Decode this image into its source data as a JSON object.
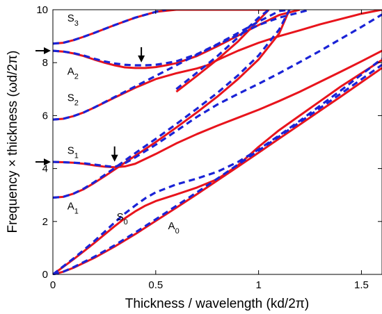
{
  "chart_data": {
    "type": "line",
    "xlabel": "Thickness / wavelength (kd/2π)",
    "ylabel": "Frequency × thickness (ωd/2π)",
    "xlim": [
      0,
      1.6
    ],
    "ylim": [
      0,
      10
    ],
    "xticks": [
      0,
      0.5,
      1,
      1.5
    ],
    "xtick_labels": [
      "0",
      "0.5",
      "1",
      "1.5"
    ],
    "yticks": [
      0,
      2,
      4,
      6,
      8,
      10
    ],
    "ytick_labels": [
      "0",
      "2",
      "4",
      "6",
      "8",
      "10"
    ],
    "grid": false,
    "colors": {
      "solid": "#e8141c",
      "dashed": "#1a23d6"
    },
    "curve_labels": [
      {
        "base": "S",
        "sub": "3",
        "x": 0.07,
        "y": 9.55
      },
      {
        "base": "A",
        "sub": "2",
        "x": 0.07,
        "y": 7.55
      },
      {
        "base": "S",
        "sub": "2",
        "x": 0.07,
        "y": 6.55
      },
      {
        "base": "S",
        "sub": "1",
        "x": 0.07,
        "y": 4.55
      },
      {
        "base": "A",
        "sub": "1",
        "x": 0.07,
        "y": 2.45
      },
      {
        "base": "S",
        "sub": "0",
        "x": 0.31,
        "y": 2.05
      },
      {
        "base": "A",
        "sub": "0",
        "x": 0.56,
        "y": 1.7
      }
    ],
    "arrows": [
      {
        "direction": "right",
        "x": 0.0,
        "y": 8.45
      },
      {
        "direction": "down",
        "x": 0.43,
        "y": 7.85
      },
      {
        "direction": "right",
        "x": 0.0,
        "y": 4.25
      },
      {
        "direction": "down",
        "x": 0.3,
        "y": 4.1
      }
    ],
    "series": [
      {
        "style": "solid",
        "x": [
          0,
          0.05,
          0.1,
          0.2,
          0.3,
          0.4,
          0.5,
          0.6,
          0.7,
          0.8,
          0.9,
          1.0,
          1.1,
          1.2,
          1.3,
          1.4,
          1.5,
          1.6
        ],
        "y": [
          0,
          0.1,
          0.25,
          0.62,
          1.05,
          1.52,
          2.02,
          2.52,
          3.03,
          3.55,
          4.07,
          4.6,
          5.13,
          5.66,
          6.19,
          6.72,
          7.26,
          7.8
        ]
      },
      {
        "style": "dashed",
        "x": [
          0,
          0.05,
          0.1,
          0.2,
          0.3,
          0.4,
          0.5,
          0.6,
          0.7,
          0.8,
          0.9,
          1.0,
          1.1,
          1.2,
          1.3,
          1.4,
          1.5,
          1.6
        ],
        "y": [
          0,
          0.1,
          0.27,
          0.66,
          1.1,
          1.58,
          2.08,
          2.59,
          3.1,
          3.62,
          4.15,
          4.68,
          5.21,
          5.75,
          6.29,
          6.83,
          7.37,
          7.92
        ]
      },
      {
        "style": "solid",
        "x": [
          0,
          0.05,
          0.1,
          0.15,
          0.2,
          0.25,
          0.3,
          0.35,
          0.4,
          0.45,
          0.5,
          0.6,
          0.7,
          0.8,
          0.9,
          1.0,
          1.1,
          1.2,
          1.3,
          1.4,
          1.5,
          1.6
        ],
        "y": [
          0,
          0.28,
          0.57,
          0.87,
          1.18,
          1.5,
          1.82,
          2.12,
          2.38,
          2.6,
          2.77,
          3.02,
          3.28,
          3.6,
          4.12,
          4.82,
          5.45,
          6.0,
          6.55,
          7.1,
          7.6,
          8.1
        ]
      },
      {
        "style": "dashed",
        "x": [
          0,
          0.05,
          0.1,
          0.15,
          0.2,
          0.25,
          0.3,
          0.35,
          0.4,
          0.45,
          0.5,
          0.6,
          0.7,
          0.8,
          0.9,
          1.0,
          1.1,
          1.2,
          1.3,
          1.4,
          1.5,
          1.6
        ],
        "y": [
          0,
          0.3,
          0.6,
          0.92,
          1.25,
          1.6,
          1.96,
          2.3,
          2.6,
          2.88,
          3.1,
          3.4,
          3.62,
          3.88,
          4.25,
          4.72,
          5.25,
          5.8,
          6.38,
          6.95,
          7.55,
          8.15
        ]
      },
      {
        "style": "solid",
        "x": [
          0,
          0.05,
          0.1,
          0.15,
          0.2,
          0.25,
          0.3,
          0.35,
          0.4,
          0.5,
          0.6,
          0.7,
          0.8,
          0.9,
          1.0,
          1.1,
          1.15
        ],
        "y": [
          2.9,
          2.93,
          3.05,
          3.22,
          3.45,
          3.7,
          3.96,
          4.22,
          4.48,
          5.0,
          5.55,
          6.12,
          6.72,
          7.38,
          8.12,
          9.1,
          10.0
        ]
      },
      {
        "style": "dashed",
        "x": [
          0,
          0.05,
          0.1,
          0.15,
          0.2,
          0.25,
          0.3,
          0.35,
          0.4,
          0.5,
          0.6,
          0.7,
          0.8,
          0.9,
          1.0,
          1.1,
          1.15
        ],
        "y": [
          2.9,
          2.93,
          3.05,
          3.24,
          3.48,
          3.75,
          4.02,
          4.3,
          4.58,
          5.12,
          5.68,
          6.26,
          6.86,
          7.52,
          8.27,
          9.25,
          10.0
        ]
      },
      {
        "style": "solid",
        "x": [
          0,
          0.05,
          0.1,
          0.15,
          0.2,
          0.25,
          0.3,
          0.35,
          0.4,
          0.5,
          0.6,
          0.7,
          0.8,
          0.9,
          1.0,
          1.1,
          1.2,
          1.3,
          1.4,
          1.5,
          1.6
        ],
        "y": [
          4.25,
          4.24,
          4.22,
          4.18,
          4.12,
          4.07,
          4.05,
          4.08,
          4.18,
          4.55,
          4.95,
          5.3,
          5.62,
          5.92,
          6.22,
          6.55,
          6.9,
          7.28,
          7.66,
          8.05,
          8.45
        ]
      },
      {
        "style": "dashed",
        "x": [
          0,
          0.05,
          0.1,
          0.15,
          0.2,
          0.25,
          0.3,
          0.35,
          0.4,
          0.5,
          0.6,
          0.7,
          0.8,
          0.9,
          1.0,
          1.1,
          1.2,
          1.3,
          1.4,
          1.5,
          1.6
        ],
        "y": [
          4.25,
          4.24,
          4.22,
          4.2,
          4.15,
          4.1,
          4.06,
          4.2,
          4.42,
          4.9,
          5.42,
          5.95,
          6.42,
          6.82,
          7.2,
          7.6,
          8.02,
          8.45,
          8.9,
          9.35,
          9.82
        ]
      },
      {
        "style": "solid",
        "x": [
          0,
          0.05,
          0.1,
          0.15,
          0.2,
          0.3,
          0.4,
          0.5,
          0.6,
          0.7,
          0.75,
          0.8,
          0.9,
          1.0,
          1.1,
          1.2,
          1.3,
          1.4,
          1.5,
          1.6
        ],
        "y": [
          5.85,
          5.88,
          5.98,
          6.12,
          6.3,
          6.68,
          7.05,
          7.38,
          7.6,
          7.78,
          7.9,
          8.1,
          8.45,
          8.75,
          9.0,
          9.22,
          9.45,
          9.65,
          9.85,
          10.0
        ]
      },
      {
        "style": "dashed",
        "x": [
          0,
          0.05,
          0.1,
          0.15,
          0.2,
          0.3,
          0.4,
          0.5,
          0.6,
          0.7,
          0.8,
          0.9,
          1.0,
          1.1,
          1.2,
          1.25
        ],
        "y": [
          5.85,
          5.88,
          5.98,
          6.12,
          6.3,
          6.7,
          7.1,
          7.5,
          7.9,
          8.3,
          8.68,
          9.05,
          9.42,
          9.7,
          9.9,
          10.0
        ]
      },
      {
        "style": "solid",
        "x": [
          0,
          0.05,
          0.1,
          0.15,
          0.2,
          0.25,
          0.3,
          0.35,
          0.4,
          0.45,
          0.5,
          0.55,
          0.6,
          0.7,
          0.8,
          0.9,
          1.0,
          1.1,
          1.2
        ],
        "y": [
          8.45,
          8.42,
          8.35,
          8.25,
          8.12,
          8.0,
          7.9,
          7.82,
          7.8,
          7.8,
          7.83,
          7.9,
          7.98,
          8.25,
          8.62,
          9.02,
          9.42,
          9.8,
          10.0
        ]
      },
      {
        "style": "dashed",
        "x": [
          0,
          0.05,
          0.1,
          0.15,
          0.2,
          0.25,
          0.3,
          0.35,
          0.4,
          0.45,
          0.5,
          0.55,
          0.6,
          0.7,
          0.8,
          0.9,
          1.0,
          1.1,
          1.15
        ],
        "y": [
          8.45,
          8.42,
          8.36,
          8.27,
          8.15,
          8.05,
          7.97,
          7.92,
          7.9,
          7.9,
          7.92,
          7.98,
          8.05,
          8.32,
          8.7,
          9.12,
          9.55,
          9.95,
          10.0
        ]
      },
      {
        "style": "solid",
        "x": [
          0,
          0.05,
          0.1,
          0.15,
          0.2,
          0.3,
          0.4,
          0.5,
          0.6,
          0.7,
          0.8,
          0.9,
          1.0,
          1.05
        ],
        "y": [
          8.72,
          8.75,
          8.85,
          8.98,
          9.12,
          9.42,
          9.7,
          9.92,
          10.0,
          10.0,
          10.0,
          10.0,
          10.0,
          10.0
        ]
      },
      {
        "style": "dashed",
        "x": [
          0,
          0.05,
          0.1,
          0.15,
          0.2,
          0.3,
          0.4,
          0.5,
          0.55
        ],
        "y": [
          8.72,
          8.75,
          8.85,
          8.98,
          9.12,
          9.42,
          9.7,
          9.92,
          10.0
        ]
      },
      {
        "style": "solid",
        "x": [
          0.6,
          0.7,
          0.8,
          0.9,
          1.0,
          1.05
        ],
        "y": [
          6.9,
          7.5,
          8.12,
          8.8,
          9.6,
          10.0
        ]
      },
      {
        "style": "dashed",
        "x": [
          0.6,
          0.7,
          0.8,
          0.9,
          1.0,
          1.05
        ],
        "y": [
          7.0,
          7.62,
          8.25,
          8.95,
          9.7,
          10.0
        ]
      }
    ]
  }
}
